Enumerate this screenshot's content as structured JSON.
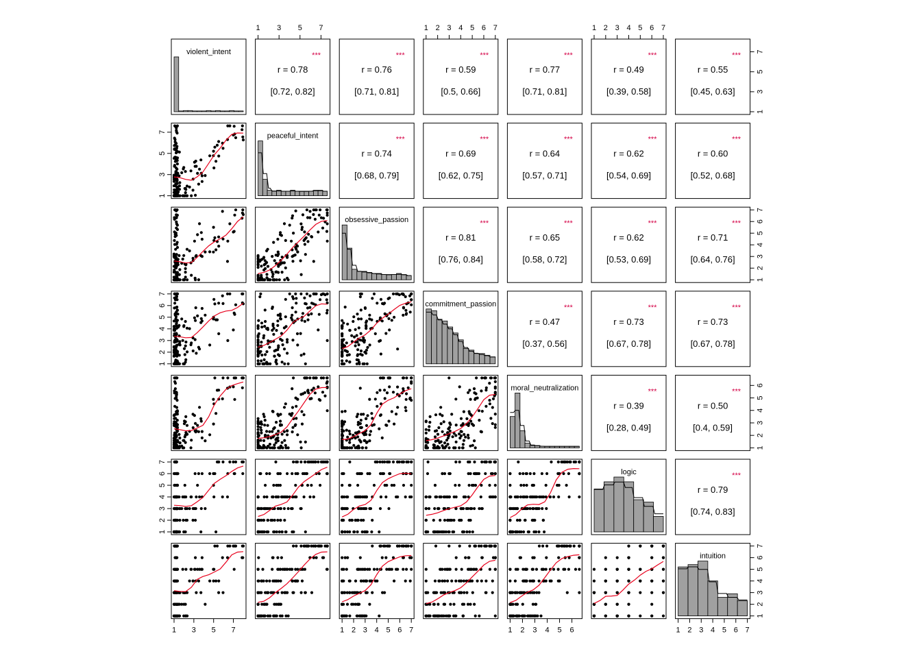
{
  "chart_data": {
    "type": "scatter",
    "title": "",
    "variables": [
      {
        "name": "violent_intent",
        "range": [
          1,
          8
        ],
        "ticks": [
          "1",
          "3",
          "5",
          "7"
        ],
        "hist": {
          "values": [
            140,
            2,
            3,
            3,
            2,
            2,
            2,
            3,
            2,
            3,
            2,
            2,
            3,
            2,
            2
          ]
        },
        "density": false
      },
      {
        "name": "peaceful_intent",
        "range": [
          1,
          7.6
        ],
        "ticks": [
          "1",
          "3",
          "5",
          "7"
        ],
        "hist": {
          "values": [
            60,
            18,
            6,
            5,
            6,
            5,
            5,
            6,
            5,
            5,
            5,
            5,
            6,
            6,
            5
          ]
        },
        "density": true
      },
      {
        "name": "obsessive_passion",
        "range": [
          1,
          7
        ],
        "ticks": [
          "1",
          "2",
          "3",
          "4",
          "5",
          "6",
          "7"
        ],
        "hist": {
          "values": [
            52,
            30,
            10,
            8,
            8,
            7,
            6,
            6,
            5,
            5,
            5,
            6,
            5,
            4
          ]
        },
        "density": true
      },
      {
        "name": "commitment_passion",
        "range": [
          1,
          7
        ],
        "ticks": [
          "1",
          "2",
          "3",
          "4",
          "5",
          "6",
          "7"
        ],
        "hist": {
          "values": [
            64,
            62,
            52,
            50,
            43,
            36,
            28,
            18,
            16,
            12,
            12,
            10,
            8
          ]
        },
        "density": true
      },
      {
        "name": "moral_neutralization",
        "range": [
          1,
          6.6
        ],
        "ticks": [
          "1",
          "2",
          "3",
          "4",
          "5",
          "6"
        ],
        "hist": {
          "values": [
            40,
            70,
            22,
            6,
            3,
            3,
            2,
            2,
            2,
            2,
            2,
            2,
            2,
            2
          ]
        },
        "density": true
      },
      {
        "name": "logic",
        "range": [
          1,
          7
        ],
        "ticks": [
          "1",
          "2",
          "3",
          "4",
          "5",
          "6",
          "7"
        ],
        "hist": {
          "values": [
            36,
            42,
            46,
            42,
            27,
            25,
            13
          ]
        },
        "density": true
      },
      {
        "name": "intuition",
        "range": [
          1,
          7
        ],
        "ticks": [
          "1",
          "2",
          "3",
          "4",
          "5",
          "6",
          "7"
        ],
        "hist": {
          "values": [
            42,
            44,
            47,
            30,
            16,
            19,
            13
          ]
        },
        "density": true
      }
    ],
    "correlations": [
      {
        "row": 1,
        "col": 2,
        "r": "r  = 0.78",
        "ci": "[0.72, 0.82]",
        "sig": "***"
      },
      {
        "row": 1,
        "col": 3,
        "r": "r  = 0.76",
        "ci": "[0.71, 0.81]",
        "sig": "***"
      },
      {
        "row": 1,
        "col": 4,
        "r": "r  = 0.59",
        "ci": "[0.5, 0.66]",
        "sig": "***"
      },
      {
        "row": 1,
        "col": 5,
        "r": "r  = 0.77",
        "ci": "[0.71, 0.81]",
        "sig": "***"
      },
      {
        "row": 1,
        "col": 6,
        "r": "r  = 0.49",
        "ci": "[0.39, 0.58]",
        "sig": "***"
      },
      {
        "row": 1,
        "col": 7,
        "r": "r  = 0.55",
        "ci": "[0.45, 0.63]",
        "sig": "***"
      },
      {
        "row": 2,
        "col": 3,
        "r": "r  = 0.74",
        "ci": "[0.68, 0.79]",
        "sig": "***"
      },
      {
        "row": 2,
        "col": 4,
        "r": "r  = 0.69",
        "ci": "[0.62, 0.75]",
        "sig": "***"
      },
      {
        "row": 2,
        "col": 5,
        "r": "r  = 0.64",
        "ci": "[0.57, 0.71]",
        "sig": "***"
      },
      {
        "row": 2,
        "col": 6,
        "r": "r  = 0.62",
        "ci": "[0.54, 0.69]",
        "sig": "***"
      },
      {
        "row": 2,
        "col": 7,
        "r": "r  = 0.60",
        "ci": "[0.52, 0.68]",
        "sig": "***"
      },
      {
        "row": 3,
        "col": 4,
        "r": "r  = 0.81",
        "ci": "[0.76, 0.84]",
        "sig": "***"
      },
      {
        "row": 3,
        "col": 5,
        "r": "r  = 0.65",
        "ci": "[0.58, 0.72]",
        "sig": "***"
      },
      {
        "row": 3,
        "col": 6,
        "r": "r  = 0.62",
        "ci": "[0.53, 0.69]",
        "sig": "***"
      },
      {
        "row": 3,
        "col": 7,
        "r": "r  = 0.71",
        "ci": "[0.64, 0.76]",
        "sig": "***"
      },
      {
        "row": 4,
        "col": 5,
        "r": "r  = 0.47",
        "ci": "[0.37, 0.56]",
        "sig": "***"
      },
      {
        "row": 4,
        "col": 6,
        "r": "r  = 0.73",
        "ci": "[0.67, 0.78]",
        "sig": "***"
      },
      {
        "row": 4,
        "col": 7,
        "r": "r  = 0.73",
        "ci": "[0.67, 0.78]",
        "sig": "***"
      },
      {
        "row": 5,
        "col": 6,
        "r": "r  = 0.39",
        "ci": "[0.28, 0.49]",
        "sig": "***"
      },
      {
        "row": 5,
        "col": 7,
        "r": "r  = 0.50",
        "ci": "[0.4, 0.59]",
        "sig": "***"
      },
      {
        "row": 6,
        "col": 7,
        "r": "r  = 0.79",
        "ci": "[0.74, 0.83]",
        "sig": "***"
      }
    ],
    "scatter": {
      "points_per_panel": 180,
      "smoother": "loess",
      "discrete_vars": [
        "logic",
        "intuition"
      ]
    },
    "colors": {
      "points": "#000000",
      "smoother": "#e8001c",
      "bars": "#a0a0a0",
      "significance": "#d40045"
    }
  }
}
